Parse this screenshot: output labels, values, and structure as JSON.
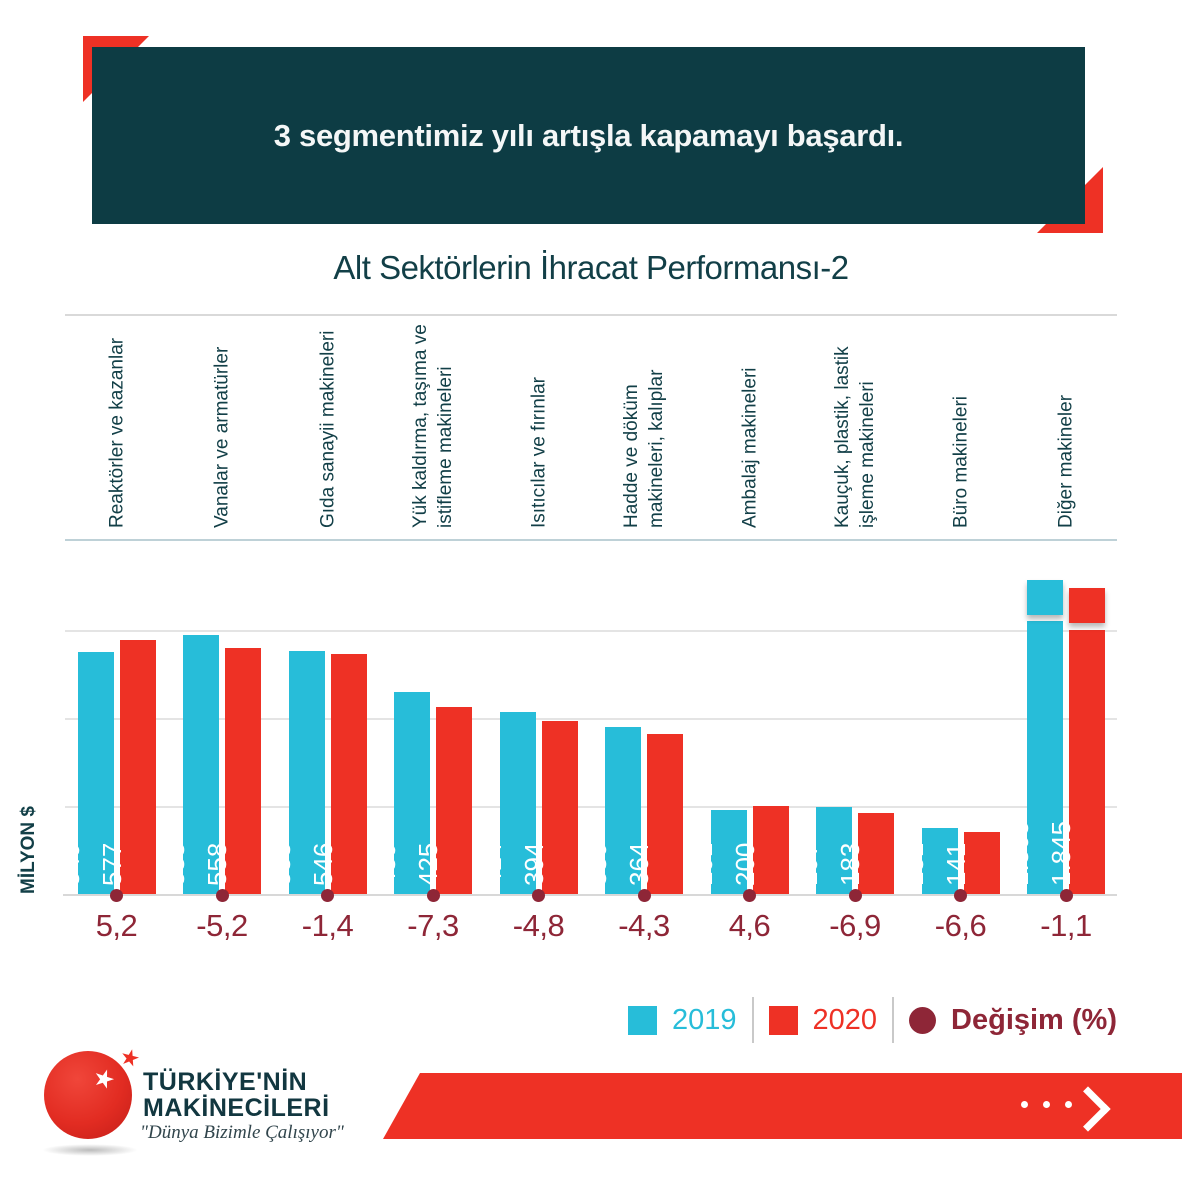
{
  "banner": {
    "text": "3 segmentimiz yılı artışla kapamayı başardı."
  },
  "title": "Alt Sektörlerin İhracat Performansı-2",
  "chart_data": {
    "type": "bar",
    "categories": [
      "Reaktörler ve kazanlar",
      "Vanalar ve armatürler",
      "Gıda sanayii makineleri",
      "Yük kaldırma, taşıma ve\nistifleme makineleri",
      "Isıtıcılar ve fırınlar",
      "Hadde ve döküm\nmakineleri, kalıplar",
      "Ambalaj makineleri",
      "Kauçuk, plastik, lastik\nişleme makineleri",
      "Büro makineleri",
      "Diğer makineler"
    ],
    "series": [
      {
        "name": "2019",
        "color": "#27bdd9",
        "values": [
          549,
          588,
          553,
          459,
          414,
          380,
          191,
          197,
          151,
          1865
        ],
        "labels": [
          "549",
          "588",
          "553",
          "459",
          "414",
          "380",
          "191",
          "197",
          "151",
          "1.865"
        ]
      },
      {
        "name": "2020",
        "color": "#ee3125",
        "values": [
          577,
          558,
          546,
          425,
          394,
          364,
          200,
          183,
          141,
          1845
        ],
        "labels": [
          "577",
          "558",
          "546",
          "425",
          "394",
          "364",
          "200",
          "183",
          "141",
          "1.845"
        ]
      }
    ],
    "change_pct": [
      "5,2",
      "-5,2",
      "-1,4",
      "-7,3",
      "-4,8",
      "-4,3",
      "4,6",
      "-6,9",
      "-6,6",
      "-1,1"
    ],
    "change_color": "#8e2637",
    "ylabel": "MİLYON $",
    "gridline_values": [
      200,
      400,
      600
    ],
    "grid": "horizontal-only",
    "axis_break_category_index": 9,
    "legend_position": "bottom-right"
  },
  "legend": {
    "items": [
      {
        "label": "2019",
        "color": "#27bdd9",
        "shape": "square"
      },
      {
        "label": "2020",
        "color": "#ee3125",
        "shape": "square"
      },
      {
        "label": "Değişim (%)",
        "color": "#8e2637",
        "shape": "circle"
      }
    ]
  },
  "logo": {
    "line1": "TÜRKİYE'NİN",
    "line2": "MAKİNECİLERİ",
    "slogan": "\"Dünya Bizimle Çalışıyor\""
  },
  "colors": {
    "banner_bg": "#0d3c44",
    "accent_red": "#ee3125",
    "cyan_2019": "#27bdd9",
    "red_2020": "#ee3125",
    "dark_red_change": "#8e2637",
    "teal_text": "#123f47"
  }
}
